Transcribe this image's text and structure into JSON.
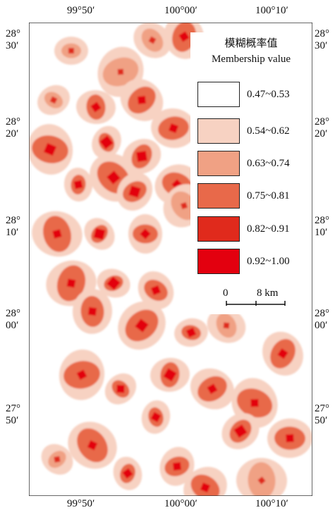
{
  "lon_labels": {
    "top": [
      "99°50′",
      "100°00′",
      "100°10′"
    ],
    "bottom": [
      "99°50′",
      "100°00′",
      "100°10′"
    ]
  },
  "lat_labels": {
    "left": [
      {
        "deg": "28°",
        "min": "30′"
      },
      {
        "deg": "28°",
        "min": "20′"
      },
      {
        "deg": "28°",
        "min": "10′"
      },
      {
        "deg": "28°",
        "min": "00′"
      },
      {
        "deg": "27°",
        "min": "50′"
      }
    ],
    "right": [
      {
        "deg": "28°",
        "min": "30′"
      },
      {
        "deg": "28°",
        "min": "20′"
      },
      {
        "deg": "28°",
        "min": "10′"
      },
      {
        "deg": "28°",
        "min": "00′"
      },
      {
        "deg": "27°",
        "min": "50′"
      }
    ]
  },
  "legend": {
    "title_cn": "模糊概率值",
    "title_en": "Membership value",
    "items": [
      {
        "label": "0.47~0.53",
        "color": "#ffffff"
      },
      {
        "label": "0.54~0.62",
        "color": "#f7d2c2"
      },
      {
        "label": "0.63~0.74",
        "color": "#f0a184"
      },
      {
        "label": "0.75~0.81",
        "color": "#e8694a"
      },
      {
        "label": "0.82~0.91",
        "color": "#e02a1c"
      },
      {
        "label": "0.92~1.00",
        "color": "#e3000f"
      }
    ]
  },
  "scale_bar": {
    "start": "0",
    "end": "8 km"
  }
}
